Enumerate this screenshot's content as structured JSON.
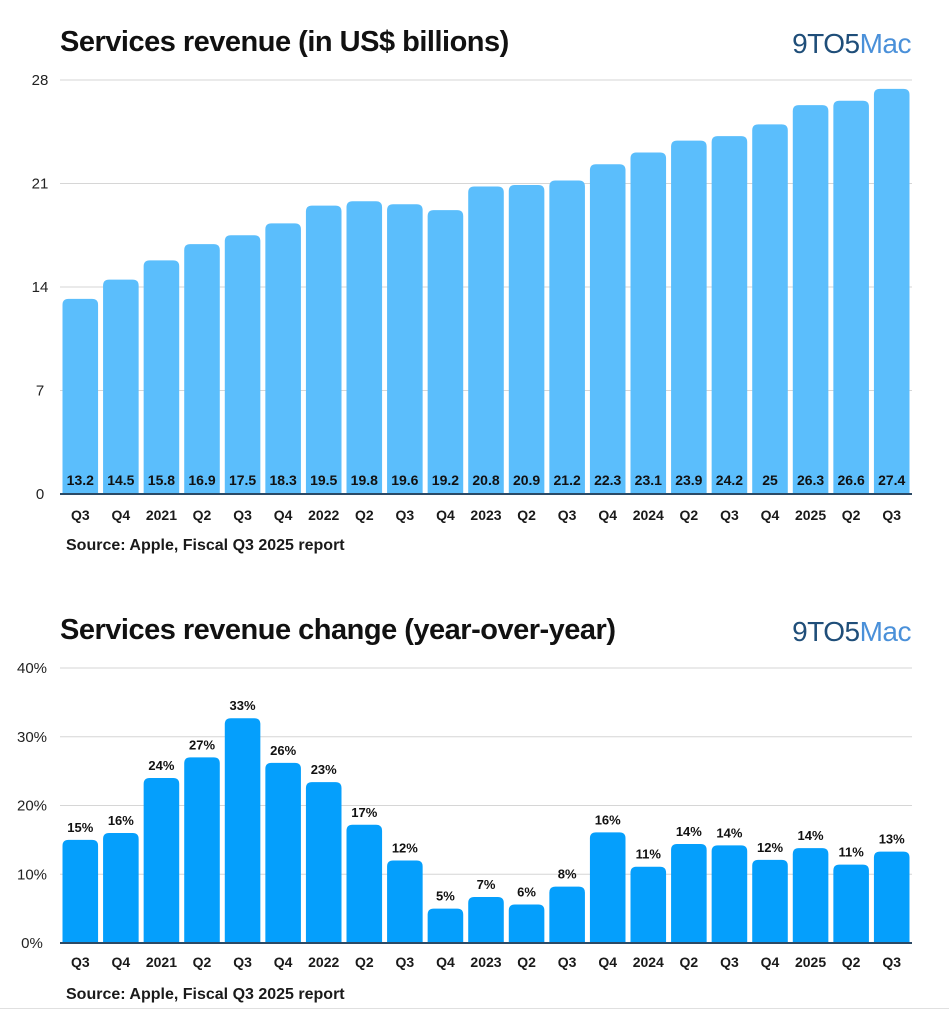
{
  "logo": {
    "dark": "9TO5",
    "light": "Mac"
  },
  "chart_data": [
    {
      "type": "bar",
      "title": "Services revenue (in US$ billions)",
      "source": "Source: Apple, Fiscal Q3 2025 report",
      "xlabel": "",
      "ylabel": "",
      "ylim": [
        0,
        28
      ],
      "yticks": [
        0,
        7,
        14,
        21,
        28
      ],
      "ytick_labels": [
        "0",
        "7",
        "14",
        "21",
        "28"
      ],
      "grid": true,
      "color": "#5bbefc",
      "categories": [
        "Q3",
        "Q4",
        "2021",
        "Q2",
        "Q3",
        "Q4",
        "2022",
        "Q2",
        "Q3",
        "Q4",
        "2023",
        "Q2",
        "Q3",
        "Q4",
        "2024",
        "Q2",
        "Q3",
        "Q4",
        "2025",
        "Q2",
        "Q3"
      ],
      "values": [
        13.2,
        14.5,
        15.8,
        16.9,
        17.5,
        18.3,
        19.5,
        19.8,
        19.6,
        19.2,
        20.8,
        20.9,
        21.2,
        22.3,
        23.1,
        23.9,
        24.2,
        25,
        26.3,
        26.6,
        27.4
      ],
      "data_labels": [
        "13.2",
        "14.5",
        "15.8",
        "16.9",
        "17.5",
        "18.3",
        "19.5",
        "19.8",
        "19.6",
        "19.2",
        "20.8",
        "20.9",
        "21.2",
        "22.3",
        "23.1",
        "23.9",
        "24.2",
        "25",
        "26.3",
        "26.6",
        "27.4"
      ],
      "label_position": "inside-bottom"
    },
    {
      "type": "bar",
      "title": "Services revenue change (year-over-year)",
      "source": "Source: Apple, Fiscal Q3 2025 report",
      "xlabel": "",
      "ylabel": "",
      "ylim": [
        0,
        40
      ],
      "yticks": [
        0,
        10,
        20,
        30,
        40
      ],
      "ytick_labels": [
        "0%",
        "10%",
        "20%",
        "30%",
        "40%"
      ],
      "grid": true,
      "color": "#059ffc",
      "categories": [
        "Q3",
        "Q4",
        "2021",
        "Q2",
        "Q3",
        "Q4",
        "2022",
        "Q2",
        "Q3",
        "Q4",
        "2023",
        "Q2",
        "Q3",
        "Q4",
        "2024",
        "Q2",
        "Q3",
        "Q4",
        "2025",
        "Q2",
        "Q3"
      ],
      "values": [
        15,
        16,
        24,
        27,
        32.7,
        26.2,
        23.4,
        17.2,
        12,
        5,
        6.7,
        5.6,
        8.2,
        16.1,
        11.1,
        14.4,
        14.2,
        12.1,
        13.8,
        11.4,
        13.3
      ],
      "data_labels": [
        "15%",
        "16%",
        "24%",
        "27%",
        "33%",
        "26%",
        "23%",
        "17%",
        "12%",
        "5%",
        "7%",
        "6%",
        "8%",
        "16%",
        "11%",
        "14%",
        "14%",
        "12%",
        "14%",
        "11%",
        "13%"
      ],
      "label_position": "above"
    }
  ]
}
